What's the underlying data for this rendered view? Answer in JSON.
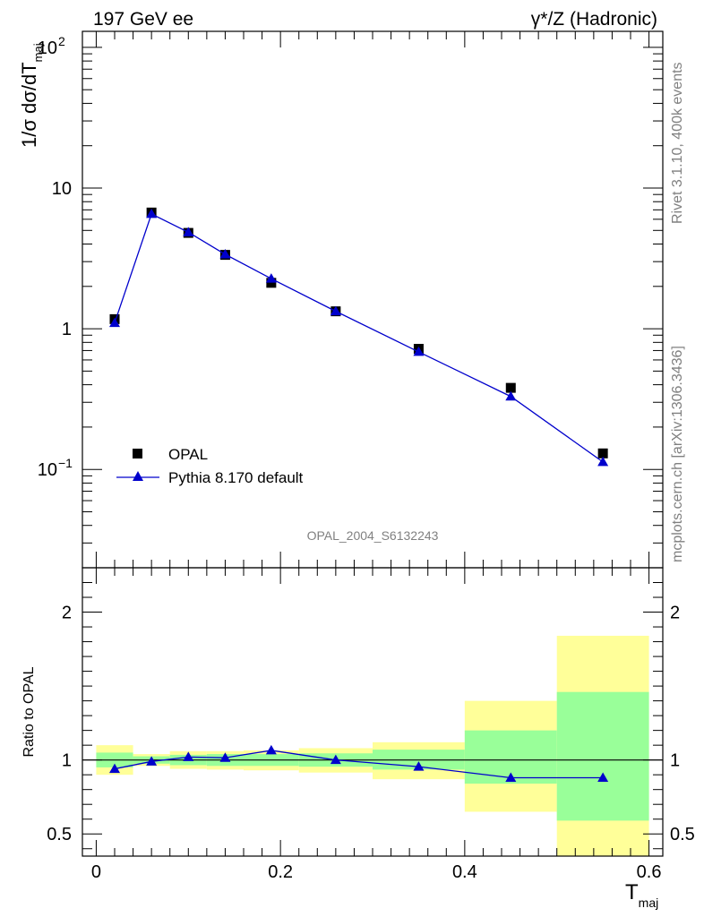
{
  "header": {
    "left": "197 GeV ee",
    "right": "γ*/Z (Hadronic)"
  },
  "side_labels": {
    "rivet": "Rivet 3.1.10,  400k events",
    "source": "mcplots.cern.ch [arXiv:1306.3436]"
  },
  "watermark": "OPAL_2004_S6132243",
  "colors": {
    "data": "#000000",
    "mc": "#0000cc",
    "band_inner": "#99ff99",
    "band_outer": "#ffff99"
  },
  "chart_data": [
    {
      "type": "scatter",
      "ylabel": "1/σ dσ/dT",
      "ylabel_sub": "maj",
      "yscale": "log",
      "xlim": [
        -0.015,
        0.615
      ],
      "ylim": [
        0.02,
        130
      ],
      "yticks": [
        {
          "value": 0.1,
          "base": "10",
          "exp": "−1"
        },
        {
          "value": 1,
          "base": "1",
          "exp": ""
        },
        {
          "value": 10,
          "base": "10",
          "exp": ""
        },
        {
          "value": 100,
          "base": "10",
          "exp": "2"
        }
      ],
      "legend_position": "bottom-left",
      "series": [
        {
          "name": "OPAL",
          "marker": "square",
          "x": [
            0.02,
            0.06,
            0.1,
            0.14,
            0.19,
            0.26,
            0.35,
            0.45,
            0.55
          ],
          "y": [
            1.17,
            6.7,
            4.8,
            3.35,
            2.12,
            1.33,
            0.72,
            0.38,
            0.13
          ]
        },
        {
          "name": "Pythia 8.170 default",
          "marker": "triangle",
          "x": [
            0.02,
            0.06,
            0.1,
            0.14,
            0.19,
            0.26,
            0.35,
            0.45,
            0.55
          ],
          "y": [
            1.1,
            6.55,
            4.85,
            3.38,
            2.27,
            1.33,
            0.685,
            0.33,
            0.113
          ]
        }
      ]
    },
    {
      "type": "line",
      "ylabel": "Ratio to OPAL",
      "xlabel": "T",
      "xlabel_sub": "maj",
      "xlim": [
        -0.015,
        0.615
      ],
      "ylim": [
        0.35,
        2.3
      ],
      "xticks": [
        0,
        0.2,
        0.4,
        0.6
      ],
      "xtick_labels": [
        "0",
        "0.2",
        "0.4",
        "0.6"
      ],
      "yticks": [
        0.5,
        1,
        2
      ],
      "ytick_labels": [
        "0.5",
        "1",
        "2"
      ],
      "reference_line": 1,
      "bands": [
        {
          "x0": 0.0,
          "x1": 0.04,
          "inner": [
            0.95,
            1.05
          ],
          "outer": [
            0.9,
            1.1
          ]
        },
        {
          "x0": 0.04,
          "x1": 0.08,
          "inner": [
            0.975,
            1.025
          ],
          "outer": [
            0.96,
            1.04
          ]
        },
        {
          "x0": 0.08,
          "x1": 0.12,
          "inner": [
            0.965,
            1.035
          ],
          "outer": [
            0.94,
            1.06
          ]
        },
        {
          "x0": 0.12,
          "x1": 0.16,
          "inner": [
            0.96,
            1.04
          ],
          "outer": [
            0.935,
            1.06
          ]
        },
        {
          "x0": 0.16,
          "x1": 0.22,
          "inner": [
            0.96,
            1.04
          ],
          "outer": [
            0.93,
            1.065
          ]
        },
        {
          "x0": 0.22,
          "x1": 0.3,
          "inner": [
            0.955,
            1.045
          ],
          "outer": [
            0.915,
            1.08
          ]
        },
        {
          "x0": 0.3,
          "x1": 0.4,
          "inner": [
            0.935,
            1.07
          ],
          "outer": [
            0.87,
            1.12
          ]
        },
        {
          "x0": 0.4,
          "x1": 0.5,
          "inner": [
            0.84,
            1.2
          ],
          "outer": [
            0.65,
            1.4
          ]
        },
        {
          "x0": 0.5,
          "x1": 0.6,
          "inner": [
            0.59,
            1.46
          ],
          "outer": [
            0.35,
            1.84
          ]
        }
      ],
      "series": [
        {
          "name": "Pythia 8.170 default",
          "marker": "triangle",
          "x": [
            0.02,
            0.06,
            0.1,
            0.14,
            0.19,
            0.26,
            0.35,
            0.45,
            0.55
          ],
          "y": [
            0.94,
            0.99,
            1.02,
            1.015,
            1.065,
            1.0,
            0.955,
            0.88,
            0.88
          ]
        }
      ]
    }
  ]
}
